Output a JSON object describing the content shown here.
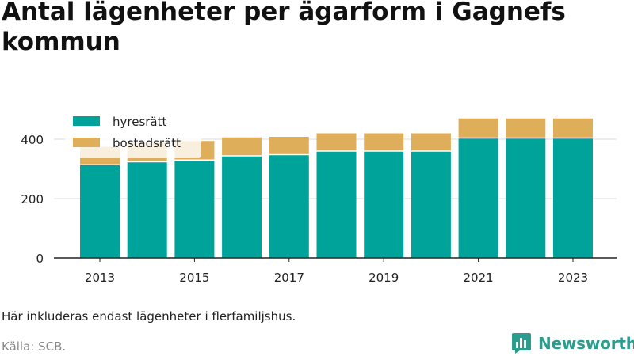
{
  "title": "Antal lägenheter per ägarform i Gagnefs kommun",
  "note": "Här inkluderas endast lägenheter i flerfamiljshus.",
  "source": "Källa: SCB.",
  "brand": "Newsworthy",
  "colors": {
    "hyresratt": "#00a39a",
    "bostadsratt": "#deae5b",
    "grid": "#dddddd",
    "axis": "#222222",
    "brand": "#2a9d8f"
  },
  "chart_data": {
    "type": "bar",
    "stacked": true,
    "categories": [
      "2013",
      "2014",
      "2015",
      "2016",
      "2017",
      "2018",
      "2019",
      "2020",
      "2021",
      "2022",
      "2023"
    ],
    "x_tick_labels": [
      "2013",
      "2015",
      "2017",
      "2019",
      "2021",
      "2023"
    ],
    "y_ticks": [
      "0",
      "200",
      "400"
    ],
    "ylim": [
      0,
      500
    ],
    "grid": true,
    "legend_position": "top-left",
    "series": [
      {
        "name": "hyresrätt",
        "color": "#00a39a",
        "values": [
          312,
          322,
          328,
          342,
          346,
          358,
          358,
          358,
          402,
          402,
          402
        ]
      },
      {
        "name": "bostadsrätt",
        "color": "#deae5b",
        "values": [
          62,
          66,
          66,
          64,
          62,
          62,
          62,
          62,
          68,
          68,
          68
        ]
      }
    ]
  }
}
